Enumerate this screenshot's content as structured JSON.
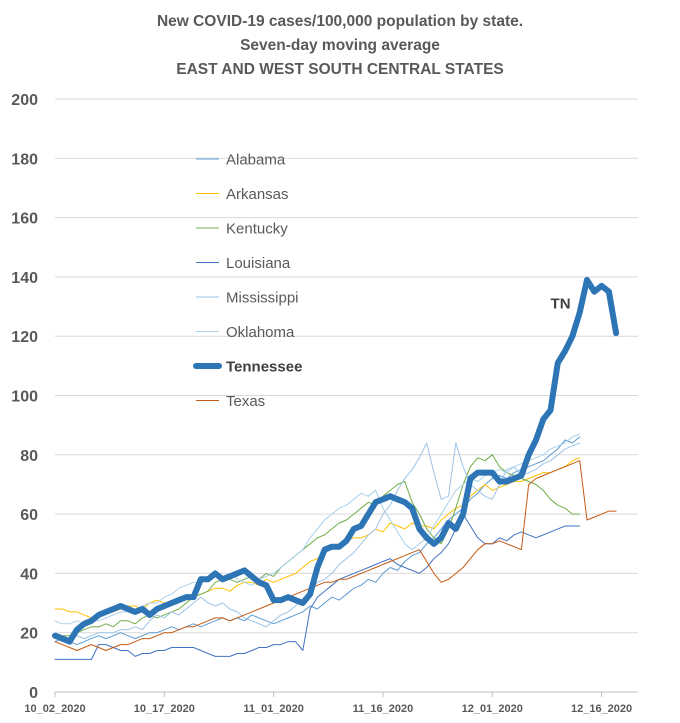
{
  "chart_data": {
    "type": "line",
    "title_lines": [
      "New COVID-19 cases/100,000 population by state.",
      "Seven-day moving average",
      "EAST AND WEST SOUTH CENTRAL STATES"
    ],
    "xlabel": "",
    "ylabel": "",
    "ylim": [
      0,
      200
    ],
    "yticks": [
      0,
      20,
      40,
      60,
      80,
      100,
      120,
      140,
      160,
      180,
      200
    ],
    "x_start": "10_02_2020",
    "x_tick_labels": [
      "10_02_2020",
      "10_17_2020",
      "11_01_2020",
      "11_16_2020",
      "12_01_2020",
      "12_16_2020"
    ],
    "grid": "horizontal",
    "legend_position": "left-middle",
    "annotations": [
      {
        "text": "TN",
        "series": "Tennessee",
        "x_day": 68,
        "y": 131
      }
    ],
    "series": [
      {
        "name": "Alabama",
        "color": "#5b9bd5",
        "width": 1,
        "bold": false,
        "values": [
          17,
          18,
          17,
          16,
          17,
          18,
          19,
          18,
          19,
          20,
          19,
          18,
          19,
          20,
          20,
          21,
          22,
          21,
          22,
          23,
          22,
          23,
          24,
          25,
          24,
          25,
          24,
          26,
          25,
          24,
          23,
          24,
          25,
          26,
          27,
          29,
          28,
          30,
          32,
          31,
          33,
          35,
          36,
          38,
          37,
          40,
          42,
          41,
          44,
          46,
          47,
          50,
          52,
          55,
          58,
          60,
          62,
          65,
          67,
          70,
          72,
          73,
          72,
          74,
          75,
          76,
          77,
          78,
          80,
          82,
          85,
          84,
          86
        ]
      },
      {
        "name": "Arkansas",
        "color": "#ffc000",
        "width": 1,
        "bold": false,
        "values": [
          28,
          28,
          27,
          27,
          26,
          25,
          26,
          27,
          27,
          28,
          29,
          29,
          28,
          30,
          31,
          30,
          30,
          32,
          31,
          32,
          33,
          34,
          35,
          35,
          34,
          36,
          37,
          37,
          36,
          38,
          37,
          38,
          39,
          40,
          42,
          44,
          45,
          47,
          49,
          50,
          51,
          52,
          52,
          53,
          55,
          54,
          57,
          56,
          55,
          57,
          56,
          56,
          55,
          58,
          60,
          62,
          63,
          66,
          68,
          70,
          68,
          69,
          70,
          71,
          71,
          72,
          73,
          74,
          74,
          75,
          76,
          78,
          79
        ]
      },
      {
        "name": "Kentucky",
        "color": "#70ad47",
        "width": 1,
        "bold": false,
        "values": [
          18,
          19,
          19,
          20,
          21,
          22,
          22,
          23,
          22,
          24,
          24,
          23,
          25,
          26,
          25,
          26,
          27,
          28,
          30,
          32,
          33,
          34,
          37,
          38,
          38,
          37,
          38,
          39,
          38,
          40,
          39,
          42,
          44,
          46,
          48,
          50,
          52,
          53,
          55,
          57,
          58,
          60,
          62,
          64,
          63,
          66,
          68,
          70,
          71,
          64,
          60,
          55,
          52,
          50,
          55,
          62,
          70,
          76,
          79,
          78,
          80,
          76,
          74,
          73,
          72,
          71,
          70,
          68,
          65,
          63,
          62,
          60,
          60
        ]
      },
      {
        "name": "Louisiana",
        "color": "#4472c4",
        "width": 1,
        "bold": false,
        "values": [
          11,
          11,
          11,
          11,
          11,
          11,
          16,
          16,
          15,
          14,
          14,
          12,
          13,
          13,
          14,
          14,
          15,
          15,
          15,
          15,
          14,
          13,
          12,
          12,
          12,
          13,
          13,
          14,
          15,
          15,
          16,
          16,
          17,
          17,
          14,
          28,
          32,
          34,
          36,
          38,
          39,
          40,
          41,
          42,
          43,
          44,
          45,
          43,
          42,
          41,
          40,
          42,
          45,
          47,
          50,
          55,
          60,
          56,
          52,
          50,
          50,
          52,
          51,
          53,
          54,
          53,
          52,
          53,
          54,
          55,
          56,
          56,
          56
        ]
      },
      {
        "name": "Mississippi",
        "color": "#9dc3e6",
        "width": 1,
        "bold": false,
        "values": [
          20,
          19,
          18,
          19,
          18,
          19,
          20,
          20,
          20,
          21,
          21,
          22,
          21,
          24,
          26,
          25,
          27,
          26,
          28,
          30,
          32,
          30,
          29,
          30,
          28,
          27,
          25,
          24,
          23,
          22,
          24,
          26,
          27,
          29,
          31,
          34,
          37,
          38,
          40,
          43,
          45,
          47,
          50,
          53,
          55,
          60,
          63,
          68,
          72,
          75,
          79,
          84,
          74,
          65,
          66,
          84,
          76,
          70,
          68,
          66,
          65,
          70,
          75,
          76,
          73,
          74,
          75,
          77,
          78,
          80,
          82,
          83,
          84
        ]
      },
      {
        "name": "Oklahoma",
        "color": "#a9d1ec",
        "width": 1,
        "bold": false,
        "values": [
          24,
          23,
          23,
          24,
          23,
          24,
          24,
          25,
          26,
          27,
          27,
          28,
          29,
          30,
          30,
          32,
          33,
          35,
          36,
          37,
          37,
          38,
          40,
          39,
          40,
          38,
          37,
          36,
          38,
          39,
          40,
          42,
          44,
          46,
          48,
          52,
          55,
          58,
          60,
          62,
          63,
          65,
          67,
          66,
          68,
          62,
          58,
          54,
          50,
          48,
          50,
          52,
          56,
          60,
          64,
          68,
          70,
          72,
          71,
          73,
          74,
          75,
          74,
          76,
          77,
          78,
          79,
          80,
          82,
          83,
          84,
          86,
          87
        ]
      },
      {
        "name": "Tennessee",
        "color": "#2e75b6",
        "width": 6,
        "bold": true,
        "values": [
          19,
          18,
          17,
          21,
          23,
          24,
          26,
          27,
          28,
          29,
          28,
          27,
          28,
          26,
          28,
          29,
          30,
          31,
          32,
          32,
          38,
          38,
          40,
          38,
          39,
          40,
          41,
          39,
          37,
          36,
          31,
          31,
          32,
          31,
          30,
          33,
          42,
          48,
          49,
          49,
          51,
          55,
          56,
          60,
          64,
          65,
          66,
          65,
          64,
          62,
          55,
          52,
          50,
          52,
          57,
          55,
          60,
          72,
          74,
          74,
          74,
          71,
          71,
          72,
          73,
          80,
          85,
          92,
          95,
          111,
          115,
          120,
          128,
          139,
          135,
          137,
          135,
          121
        ]
      },
      {
        "name": "Texas",
        "color": "#c55a11",
        "width": 1,
        "bold": false,
        "values": [
          17,
          16,
          15,
          14,
          15,
          16,
          15,
          14,
          15,
          16,
          16,
          17,
          18,
          18,
          19,
          20,
          20,
          21,
          22,
          22,
          23,
          24,
          25,
          25,
          24,
          25,
          26,
          27,
          28,
          29,
          30,
          31,
          32,
          33,
          34,
          35,
          36,
          37,
          37,
          38,
          38,
          39,
          40,
          41,
          42,
          43,
          44,
          45,
          46,
          47,
          48,
          44,
          40,
          37,
          38,
          40,
          42,
          45,
          48,
          50,
          50,
          51,
          50,
          49,
          48,
          70,
          72,
          73,
          74,
          75,
          76,
          77,
          78,
          58,
          59,
          60,
          61,
          61
        ]
      }
    ]
  }
}
